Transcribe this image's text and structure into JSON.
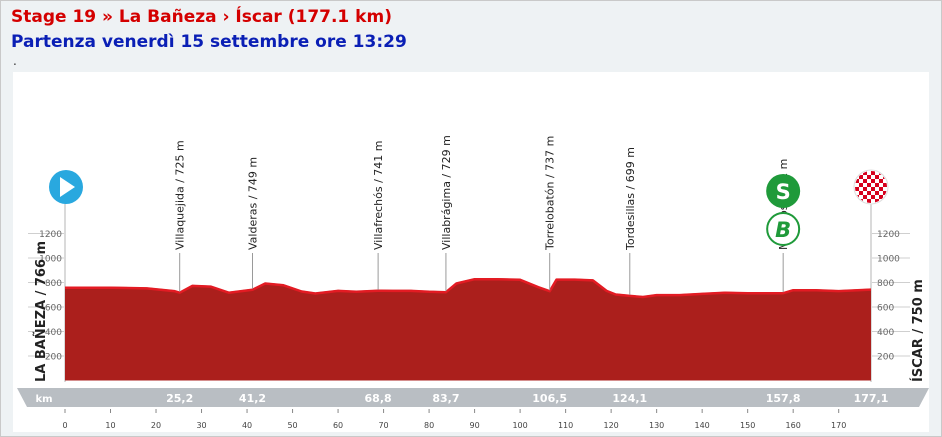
{
  "header": {
    "title": "Stage 19 » La Bañeza › Íscar (177.1 km)",
    "subtitle": "Partenza venerdì 15 settembre ore 13:29",
    "dot": "."
  },
  "colors": {
    "title": "#d40000",
    "subtitle": "#0a1fb5",
    "profile_fill": "#ab1f1c",
    "profile_top": "#e31b23",
    "start_marker": "#29a8df",
    "sprint_marker": "#1f9a3a",
    "km_band": "#b9bec3"
  },
  "chart_data": {
    "type": "area",
    "xlabel": "km",
    "xlim": [
      0,
      177.1
    ],
    "xticks": [
      0,
      10,
      20,
      30,
      40,
      50,
      60,
      70,
      80,
      90,
      100,
      110,
      120,
      130,
      140,
      150,
      160,
      170
    ],
    "ylim": [
      0,
      1400
    ],
    "yticks": [
      200,
      400,
      600,
      800,
      1000,
      1200
    ],
    "start_label": "LA BAÑEZA / 766 m",
    "finish_label": "ÍSCAR / 750 m",
    "profile": {
      "x": [
        0,
        10,
        18,
        24,
        25.2,
        28,
        32,
        36,
        41.2,
        44,
        48,
        52,
        55,
        60,
        64,
        68.8,
        72,
        76,
        80,
        83.7,
        86,
        90,
        95,
        100,
        104,
        106.5,
        108,
        112,
        116,
        119,
        121,
        124.1,
        127,
        130,
        135,
        140,
        145,
        150,
        157.8,
        160,
        165,
        170,
        177.1
      ],
      "y": [
        766,
        766,
        760,
        738,
        725,
        780,
        775,
        725,
        749,
        800,
        785,
        735,
        718,
        740,
        732,
        741,
        740,
        740,
        732,
        729,
        800,
        835,
        835,
        830,
        770,
        737,
        832,
        832,
        825,
        740,
        710,
        699,
        690,
        705,
        705,
        715,
        725,
        720,
        721,
        745,
        745,
        738,
        750
      ]
    },
    "points": [
      {
        "name": "Villaquejida / 725 m",
        "km": 25.2,
        "km_label": "25,2",
        "alt": 725
      },
      {
        "name": "Valderas / 749 m",
        "km": 41.2,
        "km_label": "41,2",
        "alt": 749
      },
      {
        "name": "Villafrechós / 741 m",
        "km": 68.8,
        "km_label": "68,8",
        "alt": 741
      },
      {
        "name": "Villabrágima / 729 m",
        "km": 83.7,
        "km_label": "83,7",
        "alt": 729
      },
      {
        "name": "Torrelobatón / 737 m",
        "km": 106.5,
        "km_label": "106,5",
        "alt": 737
      },
      {
        "name": "Tordesillas / 699 m",
        "km": 124.1,
        "km_label": "124,1",
        "alt": 699
      },
      {
        "name": "Mojados / 721 m",
        "km": 157.8,
        "km_label": "157,8",
        "alt": 721
      }
    ],
    "finish_km_label": "177,1",
    "markers": {
      "sprint": "S",
      "bonus": "B"
    }
  }
}
